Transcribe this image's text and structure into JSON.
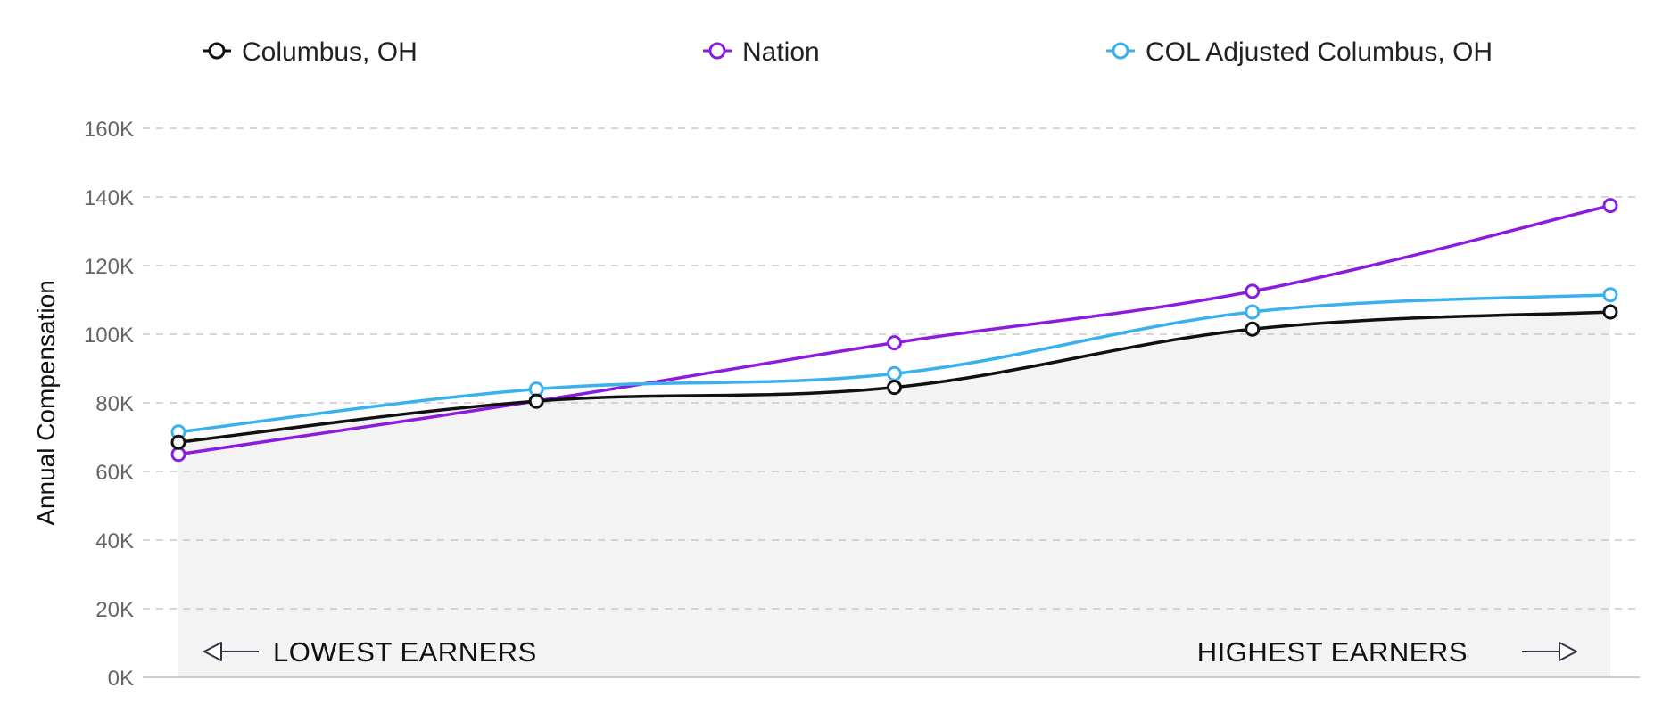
{
  "chart_data": {
    "type": "line",
    "ylabel": "Annual Compensation",
    "ylim": [
      0,
      160000
    ],
    "ytick_values": [
      0,
      20000,
      40000,
      60000,
      80000,
      100000,
      120000,
      140000,
      160000
    ],
    "ytick_labels": [
      "0K",
      "20K",
      "40K",
      "60K",
      "80K",
      "100K",
      "120K",
      "140K",
      "160K"
    ],
    "x": [
      1,
      2,
      3,
      4,
      5
    ],
    "grid": true,
    "legend_position": "top",
    "series": [
      {
        "name": "Columbus, OH",
        "color": "#111111",
        "values": [
          68500,
          80500,
          84500,
          101500,
          106500
        ]
      },
      {
        "name": "Nation",
        "color": "#8a1ce0",
        "values": [
          65000,
          80500,
          97500,
          112500,
          137500
        ]
      },
      {
        "name": "COL Adjusted Columbus, OH",
        "color": "#3ab0ee",
        "values": [
          71500,
          84000,
          88500,
          106500,
          111500
        ]
      }
    ],
    "annotations": {
      "left": "LOWEST EARNERS",
      "right": "HIGHEST EARNERS"
    }
  },
  "colors": {
    "area_fill": "#f3f3f4",
    "grid": "#c8c8c8",
    "axis": "#cccccc",
    "arrow": "#333344"
  }
}
